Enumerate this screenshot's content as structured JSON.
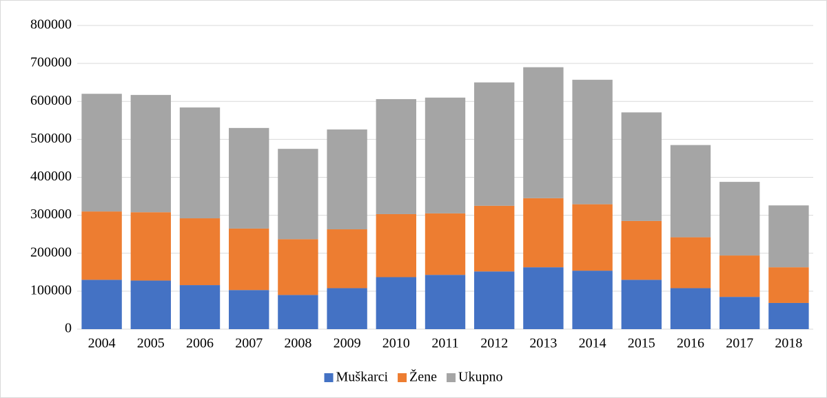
{
  "chart_data": {
    "type": "stacked_bar",
    "categories": [
      "2004",
      "2005",
      "2006",
      "2007",
      "2008",
      "2009",
      "2010",
      "2011",
      "2012",
      "2013",
      "2014",
      "2015",
      "2016",
      "2017",
      "2018"
    ],
    "series": [
      {
        "name": "Muškarci",
        "color": "#4472c4",
        "values": [
          130000,
          128000,
          116000,
          103000,
          90000,
          108000,
          137000,
          143000,
          152000,
          163000,
          154000,
          130000,
          108000,
          85000,
          69000
        ]
      },
      {
        "name": "Žene",
        "color": "#ed7d31",
        "values": [
          180000,
          180000,
          176000,
          162000,
          147000,
          155000,
          166000,
          162000,
          173000,
          182000,
          175000,
          155000,
          134000,
          109000,
          94000
        ]
      },
      {
        "name": "Ukupno",
        "color": "#a5a5a5",
        "values": [
          310000,
          309000,
          292000,
          265000,
          238000,
          263000,
          303000,
          305000,
          325000,
          345000,
          328000,
          286000,
          243000,
          194000,
          163000
        ]
      }
    ],
    "ylim": [
      0,
      800000
    ],
    "yticks": [
      0,
      100000,
      200000,
      300000,
      400000,
      500000,
      600000,
      700000,
      800000
    ],
    "grid": true,
    "legend": "bottom"
  }
}
